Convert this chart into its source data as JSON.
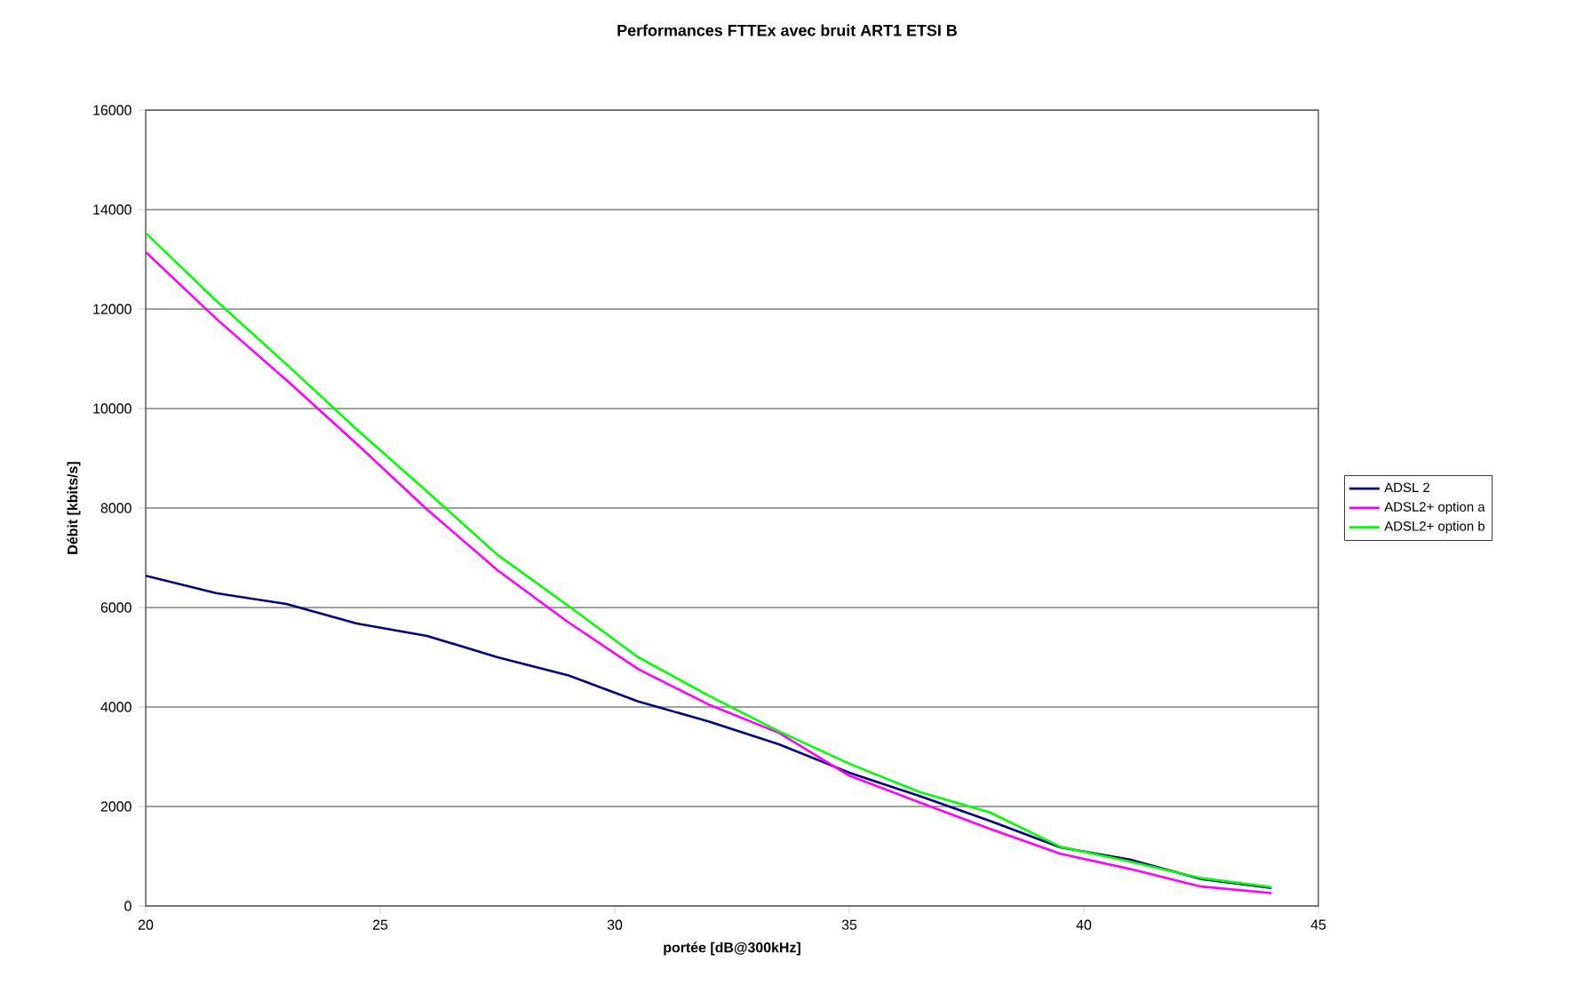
{
  "chart_data": {
    "type": "line",
    "title": "Performances FTTEx avec bruit ART1 ETSI B",
    "xlabel": "portée [dB@300kHz]",
    "ylabel": "Débit [kbits/s]",
    "x": [
      20,
      21.5,
      23,
      24.5,
      26,
      27.5,
      29,
      30.5,
      32,
      33.5,
      35,
      36.5,
      38,
      39.5,
      41,
      42.5,
      44
    ],
    "series": [
      {
        "name": "ADSL 2",
        "color": "#000080",
        "values": [
          6640,
          6290,
          6070,
          5680,
          5430,
          5000,
          4640,
          4110,
          3710,
          3250,
          2680,
          2210,
          1710,
          1180,
          930,
          540,
          360
        ]
      },
      {
        "name": "ADSL2+ option a",
        "color": "#ff00ff",
        "values": [
          13150,
          11810,
          10570,
          9290,
          7970,
          6750,
          5710,
          4760,
          4050,
          3480,
          2620,
          2080,
          1550,
          1050,
          740,
          390,
          260
        ]
      },
      {
        "name": "ADSL2+ option b",
        "color": "#00ff00",
        "values": [
          13530,
          12170,
          10890,
          9580,
          8330,
          7060,
          6040,
          5000,
          4230,
          3510,
          2860,
          2290,
          1880,
          1190,
          890,
          560,
          380
        ]
      }
    ],
    "xlim": [
      20,
      45
    ],
    "xticks": [
      20,
      25,
      30,
      35,
      40,
      45
    ],
    "ylim": [
      0,
      16000
    ],
    "yticks": [
      0,
      2000,
      4000,
      6000,
      8000,
      10000,
      12000,
      14000,
      16000
    ],
    "grid": "y",
    "legend": "right",
    "marker": "none",
    "line_style": "solid"
  }
}
